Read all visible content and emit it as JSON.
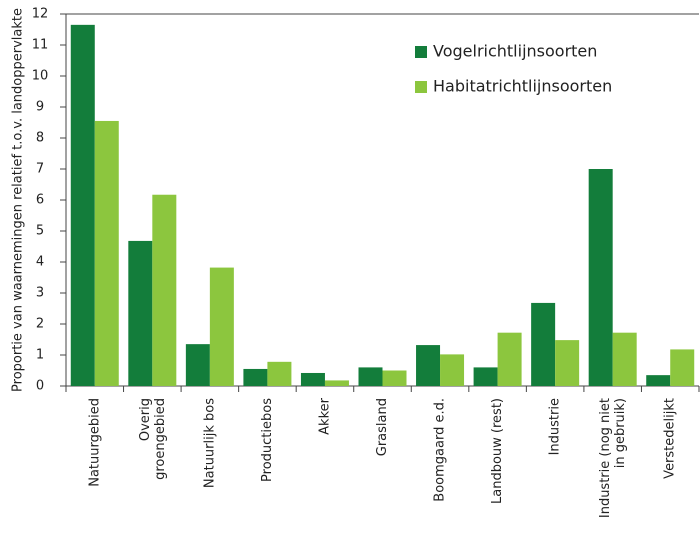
{
  "chart_data": {
    "type": "bar",
    "ylabel": "Proportie van waarnemingen relatief t.o.v. landoppervlakte",
    "categories": [
      "Natuurgebied",
      "Overig\ngroengebied",
      "Natuurlijk bos",
      "Productiebos",
      "Akker",
      "Grasland",
      "Boomgaard e.d.",
      "Landbouw (rest)",
      "Industrie",
      "Industrie (nog niet\nin gebruik)",
      "Verstedelijkt"
    ],
    "series": [
      {
        "name": "Vogelrichtlijnsoorten",
        "color": "#137d3b",
        "values": [
          11.65,
          4.68,
          1.35,
          0.55,
          0.42,
          0.6,
          1.32,
          0.6,
          2.68,
          7.0,
          0.35
        ]
      },
      {
        "name": "Habitatrichtlijnsoorten",
        "color": "#8cc63e",
        "values": [
          8.55,
          6.17,
          3.82,
          0.78,
          0.18,
          0.5,
          1.02,
          1.72,
          1.48,
          1.72,
          1.18
        ]
      }
    ],
    "ylim": [
      0,
      12
    ],
    "yticks": [
      0,
      1,
      2,
      3,
      4,
      5,
      6,
      7,
      8,
      9,
      10,
      11,
      12
    ],
    "legend": "upper right"
  }
}
